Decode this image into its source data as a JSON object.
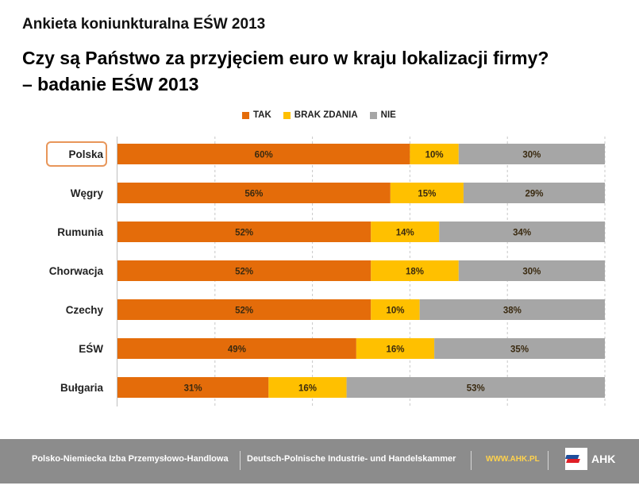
{
  "header": {
    "survey_title": "Ankieta koniunkturalna EŚW 2013",
    "title_line1": "Czy są Państwo za przyjęciem euro w kraju lokalizacji firmy?",
    "title_line2": "– badanie EŚW 2013"
  },
  "legend": {
    "placement": "top-center",
    "items": [
      {
        "label": "TAK",
        "color": "#e46c0a"
      },
      {
        "label": "BRAK ZDANIA",
        "color": "#ffc000"
      },
      {
        "label": "NIE",
        "color": "#a6a6a6"
      }
    ]
  },
  "chart_data": {
    "type": "bar",
    "orientation": "horizontal",
    "stacked": true,
    "categories": [
      "Polska",
      "Węgry",
      "Rumunia",
      "Chorwacja",
      "Czechy",
      "EŚW",
      "Bułgaria"
    ],
    "highlighted_category": "Polska",
    "series": [
      {
        "name": "TAK",
        "color": "#e46c0a",
        "values": [
          60,
          56,
          52,
          52,
          52,
          49,
          31
        ]
      },
      {
        "name": "BRAK ZDANIA",
        "color": "#ffc000",
        "values": [
          10,
          15,
          14,
          18,
          10,
          16,
          16
        ]
      },
      {
        "name": "NIE",
        "color": "#a6a6a6",
        "values": [
          30,
          29,
          34,
          30,
          38,
          35,
          53
        ]
      }
    ],
    "value_suffix": "%",
    "xlim": [
      0,
      100
    ],
    "grid": true,
    "grid_style": "dashed-vertical"
  },
  "footer": {
    "org_pl": "Polsko-Niemiecka Izba Przemysłowo-Handlowa",
    "org_de": "Deutsch-Polnische Industrie- und Handelskammer",
    "url": "WWW.AHK.PL",
    "logo_text": "AHK"
  }
}
